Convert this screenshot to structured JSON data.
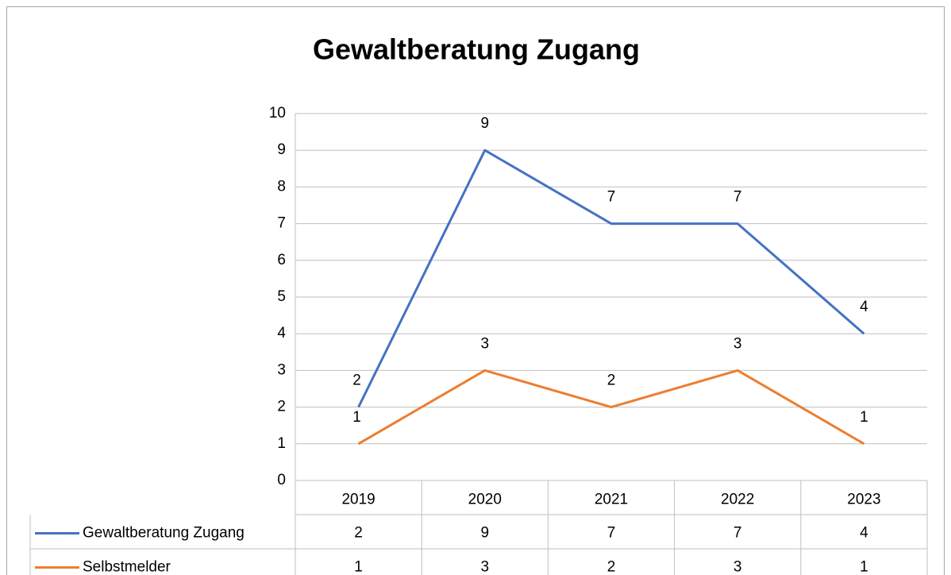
{
  "chart_data": {
    "type": "line",
    "title": "Gewaltberatung Zugang",
    "categories": [
      "2019",
      "2020",
      "2021",
      "2022",
      "2023"
    ],
    "series": [
      {
        "name": "Gewaltberatung Zugang",
        "color": "#4472c4",
        "values": [
          2,
          9,
          7,
          7,
          4
        ]
      },
      {
        "name": "Selbstmelder",
        "color": "#ed7d31",
        "values": [
          1,
          3,
          2,
          3,
          1
        ]
      }
    ],
    "ylim": [
      0,
      10
    ],
    "yticks": [
      0,
      1,
      2,
      3,
      4,
      5,
      6,
      7,
      8,
      9,
      10
    ],
    "grid": true,
    "data_table": true
  }
}
